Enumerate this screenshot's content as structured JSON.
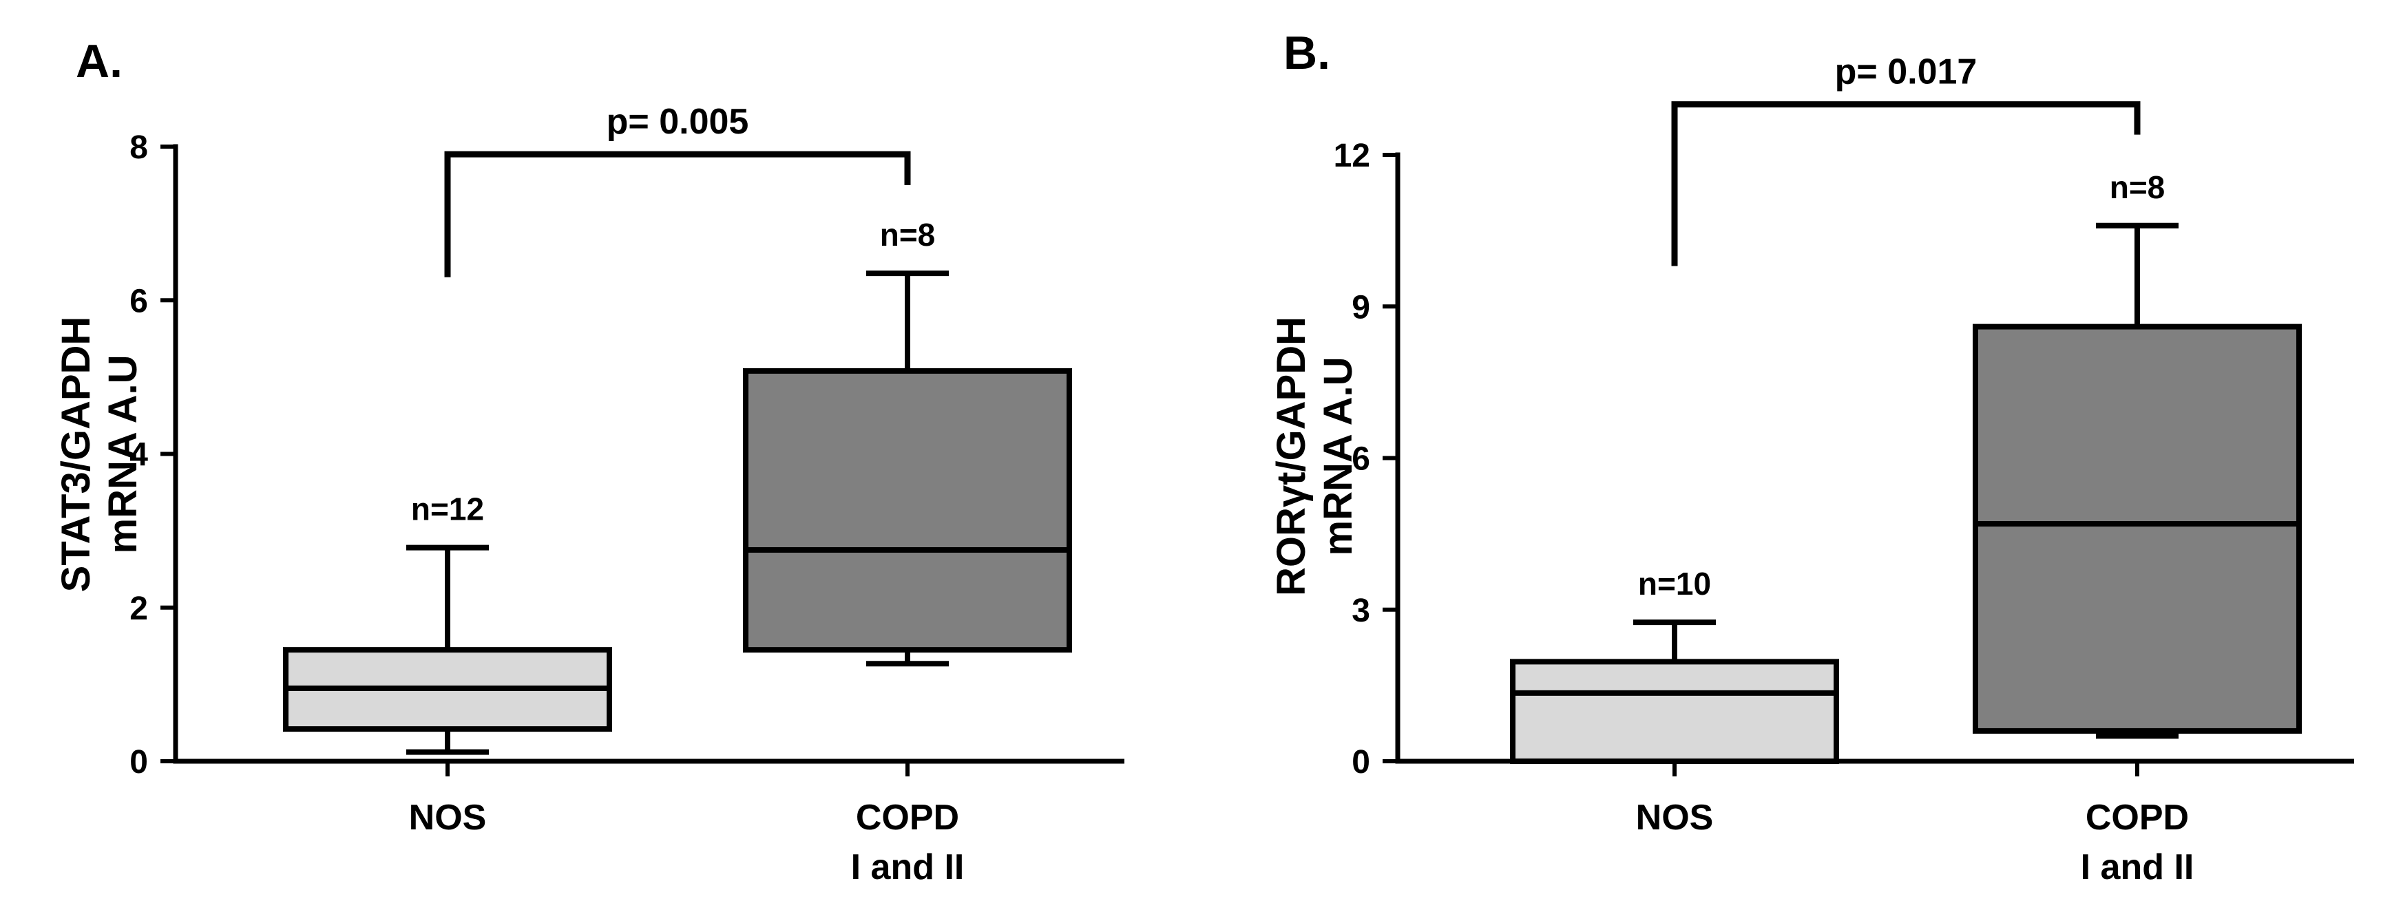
{
  "chart_data": [
    {
      "type": "box",
      "panel_label": "A.",
      "ylabel_lines": [
        "STAT3/GAPDH",
        "mRNA A.U"
      ],
      "ylim": [
        0,
        8
      ],
      "yticks": [
        0,
        2,
        4,
        6,
        8
      ],
      "categories": [
        {
          "lines": [
            "NOS"
          ],
          "color": "#d9d9d9",
          "n_label": "n=12",
          "min": 0.12,
          "q1": 0.42,
          "median": 0.95,
          "q3": 1.45,
          "max": 2.78
        },
        {
          "lines": [
            "COPD",
            "I and II"
          ],
          "color": "#808080",
          "n_label": "n=8",
          "min": 1.27,
          "q1": 1.45,
          "median": 2.75,
          "q3": 5.08,
          "max": 6.35
        }
      ],
      "significance": {
        "label": "p= 0.005",
        "bar_y": 7.9,
        "left_y": 6.3,
        "right_y": 7.5
      }
    },
    {
      "type": "box",
      "panel_label": "B.",
      "ylabel_lines": [
        "RORγt/GAPDH",
        "mRNA A.U"
      ],
      "ylim": [
        0,
        12
      ],
      "yticks": [
        0,
        3,
        6,
        9,
        12
      ],
      "categories": [
        {
          "lines": [
            "NOS"
          ],
          "color": "#d9d9d9",
          "n_label": "n=10",
          "min": 0.0,
          "q1": 0.0,
          "median": 1.35,
          "q3": 1.97,
          "max": 2.75
        },
        {
          "lines": [
            "COPD",
            "I and II"
          ],
          "color": "#808080",
          "n_label": "n=8",
          "min": 0.5,
          "q1": 0.6,
          "median": 4.7,
          "q3": 8.6,
          "max": 10.6
        }
      ],
      "significance": {
        "label": "p= 0.017",
        "bar_y": 13.0,
        "left_y": 9.8,
        "right_y": 12.4
      }
    }
  ]
}
